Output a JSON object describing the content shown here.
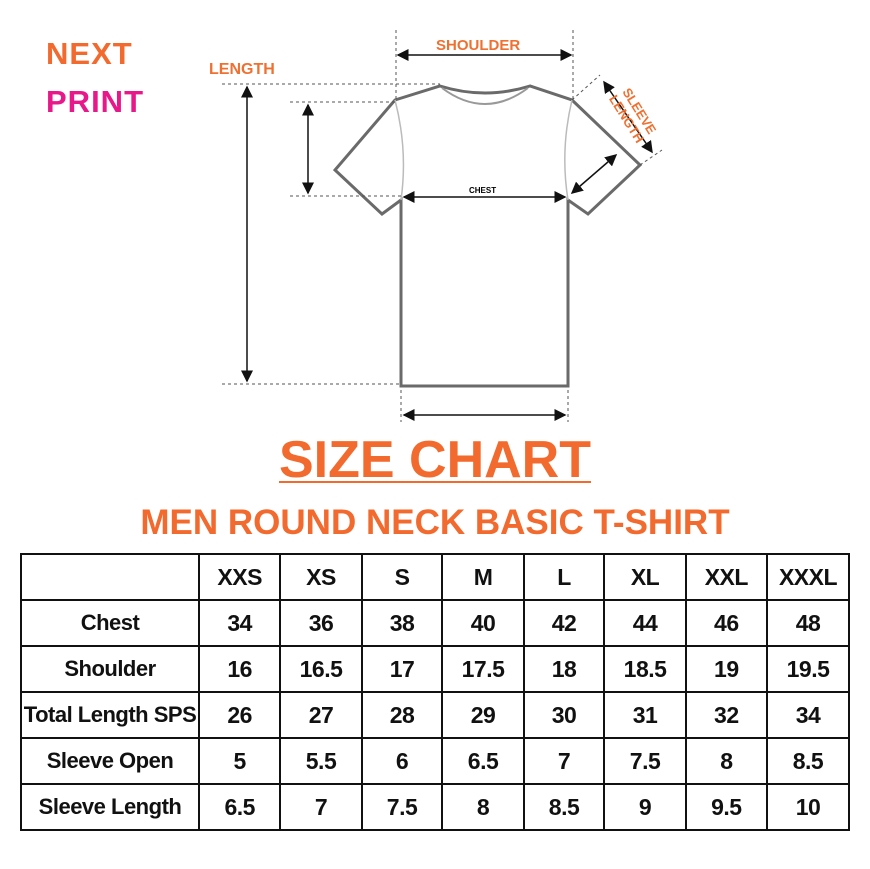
{
  "logo": {
    "line1": "NEXT",
    "line2": "PRINT",
    "colors": {
      "orange": "#f26a2e",
      "pink": "#e8178a"
    }
  },
  "diagram": {
    "shoulder": "SHOULDER",
    "length": "LENGTH",
    "sleeve_length": "SLEEVE LENGTH",
    "chest": "CHEST"
  },
  "title": "SIZE CHART",
  "subtitle": "MEN ROUND NECK BASIC T-SHIRT",
  "table": {
    "headers": [
      "",
      "XXS",
      "XS",
      "S",
      "M",
      "L",
      "XL",
      "XXL",
      "XXXL"
    ],
    "rows": [
      {
        "label": "Chest",
        "values": [
          "34",
          "36",
          "38",
          "40",
          "42",
          "44",
          "46",
          "48"
        ]
      },
      {
        "label": "Shoulder",
        "values": [
          "16",
          "16.5",
          "17",
          "17.5",
          "18",
          "18.5",
          "19",
          "19.5"
        ]
      },
      {
        "label": "Total Length SPS",
        "values": [
          "26",
          "27",
          "28",
          "29",
          "30",
          "31",
          "32",
          "34"
        ]
      },
      {
        "label": "Sleeve Open",
        "values": [
          "5",
          "5.5",
          "6",
          "6.5",
          "7",
          "7.5",
          "8",
          "8.5"
        ]
      },
      {
        "label": "Sleeve Length",
        "values": [
          "6.5",
          "7",
          "7.5",
          "8",
          "8.5",
          "9",
          "9.5",
          "10"
        ]
      }
    ]
  }
}
